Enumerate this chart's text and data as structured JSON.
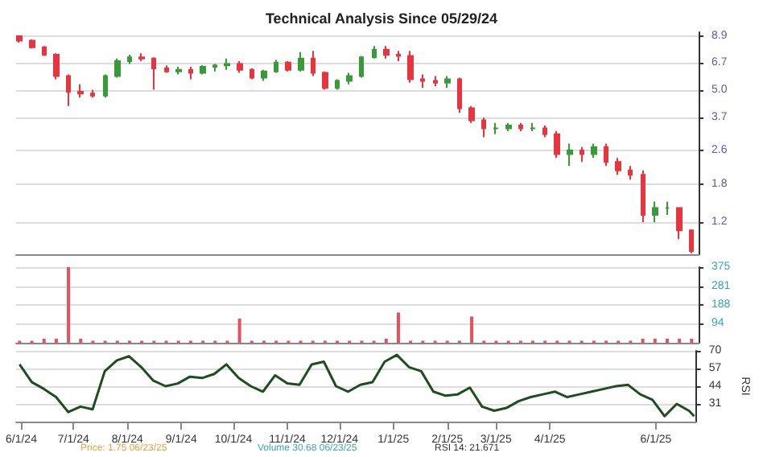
{
  "chart_data": [
    {
      "type": "candlestick",
      "title": "Technical Analysis Since 05/29/24",
      "log": true,
      "grid": "y",
      "tick_labels": "y",
      "x": [
        "2024-05-31",
        "2024-06-07",
        "2024-06-14",
        "2024-06-21",
        "2024-06-28",
        "2024-07-05",
        "2024-07-12",
        "2024-07-19",
        "2024-07-26",
        "2024-08-02",
        "2024-08-09",
        "2024-08-16",
        "2024-08-23",
        "2024-08-30",
        "2024-09-06",
        "2024-09-13",
        "2024-09-20",
        "2024-09-27",
        "2024-10-04",
        "2024-10-11",
        "2024-10-18",
        "2024-10-25",
        "2024-11-01",
        "2024-11-08",
        "2024-11-15",
        "2024-11-22",
        "2024-11-29",
        "2024-12-06",
        "2024-12-13",
        "2024-12-20",
        "2024-12-27",
        "2025-01-03",
        "2025-01-10",
        "2025-01-17",
        "2025-01-24",
        "2025-01-31",
        "2025-02-07",
        "2025-02-14",
        "2025-02-21",
        "2025-02-28",
        "2025-03-07",
        "2025-03-14",
        "2025-03-21",
        "2025-03-28",
        "2025-04-04",
        "2025-04-11",
        "2025-04-18",
        "2025-04-25",
        "2025-05-02",
        "2025-05-09",
        "2025-05-16",
        "2025-05-23",
        "2025-05-30",
        "2025-06-06",
        "2025-06-13",
        "2025-06-20"
      ],
      "ohlc": [
        [
          8.9,
          9.0,
          8.3,
          8.5
        ],
        [
          8.5,
          8.6,
          7.8,
          7.9
        ],
        [
          7.9,
          8.0,
          7.2,
          7.3
        ],
        [
          7.3,
          7.4,
          5.6,
          5.8
        ],
        [
          5.8,
          5.9,
          4.2,
          4.9
        ],
        [
          4.9,
          5.3,
          4.6,
          4.8
        ],
        [
          4.8,
          5.0,
          4.6,
          4.7
        ],
        [
          4.7,
          5.9,
          4.6,
          5.8
        ],
        [
          5.8,
          7.0,
          5.7,
          6.8
        ],
        [
          6.8,
          7.3,
          6.6,
          7.1
        ],
        [
          7.1,
          7.4,
          6.8,
          7.0
        ],
        [
          7.0,
          7.1,
          5.0,
          6.3
        ],
        [
          6.3,
          6.5,
          6.0,
          6.1
        ],
        [
          6.1,
          6.4,
          5.9,
          6.2
        ],
        [
          6.2,
          6.4,
          5.6,
          6.0
        ],
        [
          6.0,
          6.5,
          5.9,
          6.4
        ],
        [
          6.4,
          6.6,
          6.1,
          6.5
        ],
        [
          6.5,
          7.0,
          6.2,
          6.6
        ],
        [
          6.6,
          6.8,
          6.0,
          6.2
        ],
        [
          6.2,
          6.3,
          5.6,
          5.7
        ],
        [
          5.7,
          6.2,
          5.5,
          6.1
        ],
        [
          6.1,
          6.9,
          6.0,
          6.7
        ],
        [
          6.7,
          6.8,
          6.1,
          6.2
        ],
        [
          6.2,
          7.5,
          6.1,
          7.0
        ],
        [
          7.0,
          7.6,
          5.8,
          6.0
        ],
        [
          6.0,
          6.1,
          5.0,
          5.1
        ],
        [
          5.1,
          5.6,
          5.0,
          5.5
        ],
        [
          5.5,
          6.0,
          5.3,
          5.8
        ],
        [
          5.8,
          7.2,
          5.7,
          7.1
        ],
        [
          7.1,
          8.0,
          7.0,
          7.7
        ],
        [
          7.7,
          8.0,
          7.0,
          7.3
        ],
        [
          7.3,
          7.6,
          6.8,
          7.2
        ],
        [
          7.2,
          7.6,
          5.4,
          5.6
        ],
        [
          5.6,
          5.9,
          5.1,
          5.5
        ],
        [
          5.5,
          5.8,
          5.2,
          5.4
        ],
        [
          5.4,
          5.8,
          5.1,
          5.6
        ],
        [
          5.6,
          5.7,
          3.9,
          4.1
        ],
        [
          4.1,
          4.2,
          3.5,
          3.6
        ],
        [
          3.6,
          3.7,
          3.0,
          3.3
        ],
        [
          3.3,
          3.5,
          3.1,
          3.3
        ],
        [
          3.3,
          3.5,
          3.2,
          3.4
        ],
        [
          3.4,
          3.5,
          3.2,
          3.3
        ],
        [
          3.3,
          3.5,
          3.2,
          3.3
        ],
        [
          3.3,
          3.4,
          3.0,
          3.1
        ],
        [
          3.1,
          3.2,
          2.4,
          2.5
        ],
        [
          2.5,
          2.8,
          2.2,
          2.6
        ],
        [
          2.6,
          2.7,
          2.3,
          2.5
        ],
        [
          2.5,
          2.8,
          2.4,
          2.7
        ],
        [
          2.7,
          2.8,
          2.2,
          2.3
        ],
        [
          2.3,
          2.4,
          2.0,
          2.1
        ],
        [
          2.1,
          2.2,
          1.9,
          2.0
        ],
        [
          2.0,
          2.1,
          1.2,
          1.3
        ],
        [
          1.3,
          1.5,
          1.2,
          1.4
        ],
        [
          1.4,
          1.5,
          1.3,
          1.4
        ],
        [
          1.4,
          1.4,
          1.0,
          1.1
        ],
        [
          1.1,
          1.1,
          0.86,
          0.88
        ]
      ],
      "xlim": [
        "2024-05-29",
        "2025-06-24"
      ],
      "ylim": [
        0.85,
        9.3
      ],
      "yticks": [
        1.2,
        1.8,
        2.6,
        3.7,
        {
          "value": 5,
          "label": "5.0"
        },
        6.7,
        8.9
      ]
    },
    {
      "type": "bar",
      "grid": "y",
      "tick_labels": "y",
      "color": "#e8505b",
      "x": [
        "2024-05-31",
        "2024-06-07",
        "2024-06-14",
        "2024-06-21",
        "2024-06-28",
        "2024-07-05",
        "2024-07-12",
        "2024-07-19",
        "2024-07-26",
        "2024-08-02",
        "2024-08-09",
        "2024-08-16",
        "2024-08-23",
        "2024-08-30",
        "2024-09-06",
        "2024-09-13",
        "2024-09-20",
        "2024-09-27",
        "2024-10-04",
        "2024-10-11",
        "2024-10-18",
        "2024-10-25",
        "2024-11-01",
        "2024-11-08",
        "2024-11-15",
        "2024-11-22",
        "2024-11-29",
        "2024-12-06",
        "2024-12-13",
        "2024-12-20",
        "2024-12-27",
        "2025-01-03",
        "2025-01-10",
        "2025-01-17",
        "2025-01-24",
        "2025-01-31",
        "2025-02-07",
        "2025-02-14",
        "2025-02-21",
        "2025-02-28",
        "2025-03-07",
        "2025-03-14",
        "2025-03-21",
        "2025-03-28",
        "2025-04-04",
        "2025-04-11",
        "2025-04-18",
        "2025-04-25",
        "2025-05-02",
        "2025-05-09",
        "2025-05-16",
        "2025-05-23",
        "2025-05-30",
        "2025-06-06",
        "2025-06-13",
        "2025-06-20"
      ],
      "values": [
        10,
        10,
        20,
        20,
        375,
        20,
        10,
        10,
        10,
        10,
        10,
        10,
        10,
        10,
        10,
        10,
        10,
        10,
        120,
        10,
        10,
        10,
        10,
        10,
        10,
        10,
        10,
        10,
        10,
        10,
        20,
        150,
        10,
        10,
        10,
        10,
        10,
        130,
        10,
        10,
        10,
        10,
        10,
        10,
        10,
        10,
        10,
        10,
        10,
        10,
        10,
        20,
        20,
        20,
        20,
        20
      ],
      "xlim": [
        "2024-05-29",
        "2025-06-24"
      ],
      "ylim": [
        0,
        375
      ],
      "yticks": [
        94,
        188,
        281,
        375
      ]
    },
    {
      "type": "line",
      "ylabel": "RSI",
      "grid": "y",
      "color": "#1e4d1e",
      "x": [
        "2024-05-31",
        "2024-06-07",
        "2024-06-14",
        "2024-06-21",
        "2024-06-28",
        "2024-07-05",
        "2024-07-12",
        "2024-07-19",
        "2024-07-26",
        "2024-08-02",
        "2024-08-09",
        "2024-08-16",
        "2024-08-23",
        "2024-08-30",
        "2024-09-06",
        "2024-09-13",
        "2024-09-20",
        "2024-09-27",
        "2024-10-04",
        "2024-10-11",
        "2024-10-18",
        "2024-10-25",
        "2024-11-01",
        "2024-11-08",
        "2024-11-15",
        "2024-11-22",
        "2024-11-29",
        "2024-12-06",
        "2024-12-13",
        "2024-12-20",
        "2024-12-27",
        "2025-01-03",
        "2025-01-10",
        "2025-01-17",
        "2025-01-24",
        "2025-01-31",
        "2025-02-07",
        "2025-02-14",
        "2025-02-21",
        "2025-02-28",
        "2025-03-07",
        "2025-03-14",
        "2025-03-21",
        "2025-03-28",
        "2025-04-04",
        "2025-04-11",
        "2025-04-18",
        "2025-04-25",
        "2025-05-02",
        "2025-05-09",
        "2025-05-16",
        "2025-05-23",
        "2025-05-30",
        "2025-06-06",
        "2025-06-13",
        "2025-06-20",
        "2025-06-23"
      ],
      "values": [
        60,
        47,
        42,
        36,
        25,
        29,
        27,
        55,
        63,
        66,
        58,
        48,
        44,
        46,
        51,
        50,
        53,
        60,
        50,
        44,
        40,
        52,
        46,
        45,
        60,
        62,
        44,
        40,
        45,
        47,
        62,
        67,
        58,
        55,
        40,
        37,
        38,
        43,
        29,
        26,
        28,
        33,
        36,
        38,
        40,
        36,
        38,
        40,
        42,
        44,
        45,
        38,
        34,
        22,
        31,
        26,
        22
      ],
      "xlim": [
        "2024-05-29",
        "2025-06-24"
      ],
      "ylim": [
        18,
        70
      ],
      "yticks": [
        31,
        44,
        57,
        70
      ],
      "xticks": [
        {
          "value": "2024-06-01",
          "label": "6/1/24"
        },
        {
          "value": "2024-07-01",
          "label": "7/1/24"
        },
        {
          "value": "2024-08-01",
          "label": "8/1/24"
        },
        {
          "value": "2024-09-01",
          "label": "9/1/24"
        },
        {
          "value": "2024-10-01",
          "label": "10/1/24"
        },
        {
          "value": "2024-11-01",
          "label": "11/1/24"
        },
        {
          "value": "2024-12-01",
          "label": "12/1/24"
        },
        {
          "value": "2025-01-01",
          "label": "1/1/25"
        },
        {
          "value": "2025-02-01",
          "label": "2/1/25"
        },
        {
          "value": "2025-03-01",
          "label": "3/1/25"
        },
        {
          "value": "2025-04-01",
          "label": "4/1/25"
        },
        {
          "value": "2025-06-01",
          "label": "6/1/25"
        }
      ],
      "annotations": [
        "Price: 1.75 06/23/25",
        "Volume 30.68 06/23/25",
        "RSI 14: 21.671"
      ]
    }
  ]
}
